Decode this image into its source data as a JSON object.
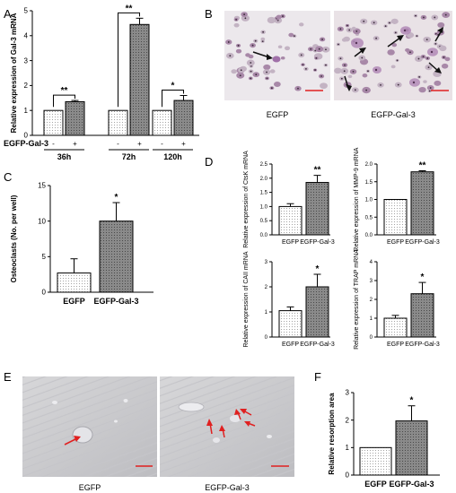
{
  "colors": {
    "bar_control": "#ffffff",
    "bar_treated": "#8c8c8c",
    "arrow_red": "#e02020",
    "scalebar": "#e02020"
  },
  "panels": {
    "A": {
      "label": "A"
    },
    "B": {
      "label": "B"
    },
    "C": {
      "label": "C"
    },
    "D": {
      "label": "D"
    },
    "E": {
      "label": "E"
    },
    "F": {
      "label": "F"
    }
  },
  "micrographs": {
    "B": {
      "left_caption": "EGFP",
      "right_caption": "EGFP-Gal-3"
    },
    "E": {
      "left_caption": "EGFP",
      "right_caption": "EGFP-Gal-3"
    }
  },
  "chart_data": [
    {
      "id": "A",
      "type": "bar",
      "ylabel": "Relative expression of Gal-3 mRNA",
      "ylim": [
        0,
        5
      ],
      "yticks": [
        "0",
        "1",
        "2",
        "3",
        "4",
        "5"
      ],
      "row_label": "EGFP-Gal-3",
      "bar_signs": [
        "-",
        "+",
        "-",
        "+",
        "-",
        "+"
      ],
      "groups": [
        "36h",
        "72h",
        "120h"
      ],
      "values": [
        1.0,
        1.35,
        1.0,
        4.45,
        1.0,
        1.4
      ],
      "errors": [
        0,
        0.05,
        0,
        0.25,
        0,
        0.2
      ],
      "significance": [
        "**",
        "**",
        "*"
      ]
    },
    {
      "id": "C",
      "type": "bar",
      "ylabel": "Osteoclasts (No. per well)",
      "ylim": [
        0,
        15
      ],
      "yticks": [
        "0",
        "5",
        "10",
        "15"
      ],
      "categories": [
        "EGFP",
        "EGFP-Gal-3"
      ],
      "values": [
        2.7,
        10.0
      ],
      "errors": [
        2.0,
        2.6
      ],
      "significance": [
        "",
        "*"
      ]
    },
    {
      "id": "D1",
      "type": "bar",
      "ylabel": "Relative expression of CtsK mRNA",
      "ylim": [
        0,
        2.5
      ],
      "yticks": [
        "0.0",
        "0.5",
        "1.0",
        "1.5",
        "2.0",
        "2.5"
      ],
      "categories": [
        "EGFP",
        "EGFP-Gal-3"
      ],
      "values": [
        1.0,
        1.85
      ],
      "errors": [
        0.1,
        0.25
      ],
      "significance": [
        "",
        "**"
      ]
    },
    {
      "id": "D2",
      "type": "bar",
      "ylabel": "Relative expression of MMP-9 mRNA",
      "ylim": [
        0,
        2.0
      ],
      "yticks": [
        "0.0",
        "0.5",
        "1.0",
        "1.5",
        "2.0"
      ],
      "categories": [
        "EGFP",
        "EGFP-Gal-3"
      ],
      "values": [
        1.0,
        1.78
      ],
      "errors": [
        0,
        0.03
      ],
      "significance": [
        "",
        "**"
      ]
    },
    {
      "id": "D3",
      "type": "bar",
      "ylabel": "Relative expression of CAII mRNA",
      "ylim": [
        0,
        3
      ],
      "yticks": [
        "0",
        "1",
        "2",
        "3"
      ],
      "categories": [
        "EGFP",
        "EGFP-Gal-3"
      ],
      "values": [
        1.05,
        2.0
      ],
      "errors": [
        0.15,
        0.5
      ],
      "significance": [
        "",
        "*"
      ]
    },
    {
      "id": "D4",
      "type": "bar",
      "ylabel": "Relative expression of TRAP mRNA",
      "ylim": [
        0,
        4
      ],
      "yticks": [
        "0",
        "1",
        "2",
        "3",
        "4"
      ],
      "categories": [
        "EGFP",
        "EGFP-Gal-3"
      ],
      "values": [
        1.0,
        2.3
      ],
      "errors": [
        0.15,
        0.6
      ],
      "significance": [
        "",
        "*"
      ]
    },
    {
      "id": "F",
      "type": "bar",
      "ylabel": "Relative resorption area",
      "ylim": [
        0,
        3
      ],
      "yticks": [
        "0",
        "1",
        "2",
        "3"
      ],
      "categories": [
        "EGFP",
        "EGFP-Gal-3"
      ],
      "values": [
        1.0,
        1.97
      ],
      "errors": [
        0,
        0.55
      ],
      "significance": [
        "",
        "*"
      ]
    }
  ]
}
